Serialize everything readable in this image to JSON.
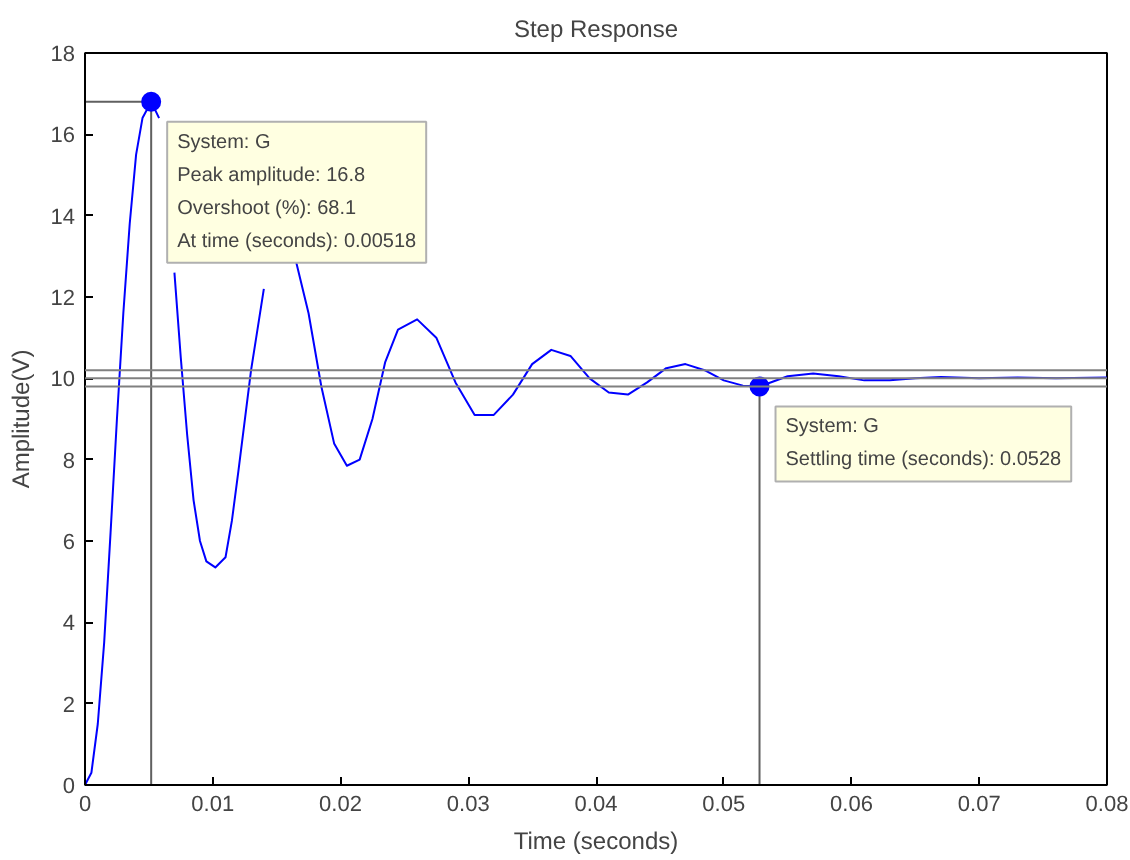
{
  "chart_data": {
    "type": "line",
    "title": "Step Response",
    "xlabel": "Time (seconds)",
    "ylabel": "Amplitude(V)",
    "x": [
      0,
      0.0005,
      0.001,
      0.0015,
      0.002,
      0.0025,
      0.003,
      0.0035,
      0.004,
      0.0045,
      0.00518,
      0.0058,
      0.0065,
      0.007,
      0.0075,
      0.008,
      0.0085,
      0.009,
      0.0095,
      0.0102,
      0.011,
      0.0115,
      0.012,
      0.013,
      0.014,
      0.015,
      0.0155,
      0.0165,
      0.0175,
      0.0185,
      0.0195,
      0.0205,
      0.0215,
      0.0225,
      0.0235,
      0.0245,
      0.026,
      0.0275,
      0.029,
      0.0305,
      0.032,
      0.0335,
      0.035,
      0.0365,
      0.038,
      0.0395,
      0.041,
      0.0425,
      0.044,
      0.0455,
      0.047,
      0.0485,
      0.05,
      0.0515,
      0.0528,
      0.055,
      0.057,
      0.059,
      0.061,
      0.063,
      0.065,
      0.067,
      0.07,
      0.073,
      0.076,
      0.08
    ],
    "series": [
      {
        "color": "#0000ff",
        "values": [
          0,
          0.3,
          1.5,
          3.5,
          6.2,
          9,
          11.6,
          13.8,
          15.5,
          16.4,
          16.8,
          16.4,
          null,
          12.6,
          10.5,
          8.6,
          7,
          6.0,
          5.5,
          5.35,
          5.6,
          6.5,
          7.7,
          10.2,
          12.2,
          null,
          null,
          12.9,
          11.6,
          9.8,
          8.4,
          7.85,
          8.0,
          9.0,
          10.4,
          11.2,
          11.45,
          11.0,
          9.9,
          9.1,
          9.1,
          9.6,
          10.35,
          10.7,
          10.55,
          10.0,
          9.65,
          9.6,
          9.9,
          10.25,
          10.35,
          10.2,
          9.95,
          9.82,
          9.8,
          10.05,
          10.12,
          10.05,
          9.95,
          9.95,
          10.0,
          10.03,
          10.0,
          10.02,
          10.0,
          10.02
        ]
      },
      {
        "color": "#606060",
        "x": [
          0,
          0.00518,
          0.00518
        ],
        "values": [
          16.8,
          16.8,
          0
        ]
      },
      {
        "color": "#606060",
        "x": [
          0.0528,
          0.0528
        ],
        "values": [
          9.8,
          0
        ]
      }
    ],
    "xlim": [
      0,
      0.08
    ],
    "xticks": [
      0,
      0.01,
      0.02,
      0.03,
      0.04,
      0.05,
      0.06,
      0.07,
      0.08
    ],
    "ylim": [
      0,
      18
    ],
    "yticks": [
      0,
      2,
      4,
      6,
      8,
      10,
      12,
      14,
      16,
      18
    ],
    "grid": false,
    "marker": "none",
    "line_style": "solid",
    "ref_lines": [
      {
        "axis": "y",
        "value": 10.2,
        "color": "#808080"
      },
      {
        "axis": "y",
        "value": 10,
        "color": "#808080"
      },
      {
        "axis": "y",
        "value": 9.8,
        "color": "#808080"
      }
    ],
    "annotations": [
      {
        "text": "System: G\nPeak amplitude: 16.8\nOvershoot (%): 68.1\nAt time (seconds): 0.00518",
        "x": 0.00518,
        "y": 16.8
      },
      {
        "text": "System: G\nSettling time (seconds): 0.0528",
        "x": 0.0528,
        "y": 9.8
      }
    ]
  }
}
